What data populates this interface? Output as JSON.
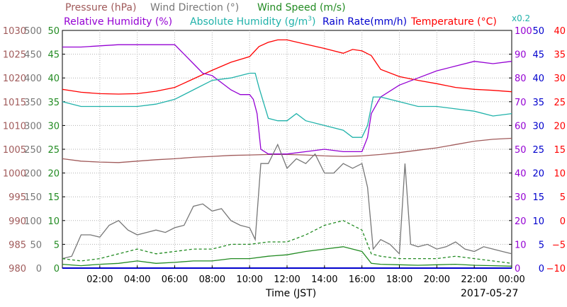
{
  "chart_data": {
    "type": "line",
    "date": "2017-05-27",
    "xlabel": "Time (JST)",
    "x_ticks": [
      "02:00",
      "04:00",
      "06:00",
      "08:00",
      "10:00",
      "12:00",
      "14:00",
      "16:00",
      "18:00",
      "20:00",
      "22:00",
      "00:00"
    ],
    "grid": true,
    "header": {
      "pressure": "Pressure (hPa)",
      "wind_direction": "Wind Direction (°)",
      "wind_speed": "Wind Speed (m/s)",
      "relative_humidity": "Relative Humidity (%)",
      "absolute_humidity_prefix": "Absolute Humidity (g/m",
      "absolute_humidity_sup": "3",
      "absolute_humidity_suffix": ")",
      "rain_rate": "Rain Rate(mm/h)",
      "temperature": "Temperature (°C)",
      "absolute_humidity_scale": "x0.2"
    },
    "axes": {
      "pressure": {
        "ylim": [
          980,
          1030
        ],
        "ticks": [
          "980",
          "985",
          "990",
          "995",
          "1000",
          "1005",
          "1010",
          "1015",
          "1020",
          "1025",
          "1030"
        ],
        "color": "#a05a5a"
      },
      "wind_direction": {
        "ylim": [
          0,
          500
        ],
        "ticks": [
          "0",
          "50",
          "100",
          "150",
          "200",
          "250",
          "300",
          "350",
          "400",
          "450",
          "500"
        ],
        "color": "#777777"
      },
      "wind_speed": {
        "ylim": [
          0,
          50
        ],
        "ticks": [
          "0",
          "5",
          "10",
          "15",
          "20",
          "25",
          "30",
          "35",
          "40",
          "45",
          "50"
        ],
        "color": "#228b22"
      },
      "relative_humidity": {
        "ylim": [
          0,
          100
        ],
        "ticks": [
          "0",
          "10",
          "20",
          "30",
          "40",
          "50",
          "60",
          "70",
          "80",
          "90",
          "100"
        ],
        "color": "#9400d3"
      },
      "rain_rate": {
        "ylim": [
          0,
          50
        ],
        "ticks": [
          "0",
          "5",
          "10",
          "15",
          "20",
          "25",
          "30",
          "35",
          "40",
          "45",
          "50"
        ],
        "color": "#0000cd"
      },
      "temperature": {
        "ylim": [
          -10,
          40
        ],
        "ticks": [
          "−10",
          "−5",
          "0",
          "5",
          "10",
          "15",
          "20",
          "25",
          "30",
          "35",
          "40"
        ],
        "color": "#ff0000"
      }
    },
    "series": [
      {
        "name": "Pressure (hPa)",
        "color": "#a05a5a",
        "axis": "pressure",
        "x": [
          0,
          1,
          2,
          3,
          4,
          5,
          6,
          7,
          8,
          9,
          10,
          11,
          12,
          13,
          14,
          15,
          16,
          17,
          18,
          19,
          20,
          21,
          22,
          23,
          24
        ],
        "y": [
          1003,
          1002.5,
          1002.3,
          1002.2,
          1002.5,
          1002.8,
          1003.0,
          1003.3,
          1003.5,
          1003.7,
          1003.8,
          1003.9,
          1003.9,
          1003.8,
          1003.6,
          1003.5,
          1003.6,
          1003.9,
          1004.3,
          1004.8,
          1005.3,
          1006.0,
          1006.7,
          1007.1,
          1007.3
        ]
      },
      {
        "name": "Temperature (°C)",
        "color": "#ff0000",
        "axis": "temperature",
        "x": [
          0,
          1,
          2,
          3,
          4,
          5,
          6,
          7,
          8,
          9,
          10,
          10.5,
          11,
          11.5,
          12,
          13,
          14,
          15,
          15.5,
          16,
          16.5,
          17,
          18,
          19,
          20,
          21,
          22,
          23,
          24
        ],
        "y": [
          27.6,
          27.0,
          26.7,
          26.6,
          26.7,
          27.2,
          28.0,
          29.8,
          31.6,
          33.3,
          34.5,
          36.6,
          37.5,
          38.0,
          38.0,
          37.1,
          36.2,
          35.2,
          36.0,
          35.7,
          34.7,
          31.8,
          30.3,
          29.5,
          28.8,
          28.0,
          27.6,
          27.4,
          27.1
        ]
      },
      {
        "name": "Relative Humidity (%)",
        "color": "#9400d3",
        "axis": "relative_humidity",
        "x": [
          0,
          1,
          2,
          3,
          4,
          5,
          6,
          6.5,
          7,
          7.5,
          8,
          8.5,
          9,
          9.5,
          10,
          10.2,
          10.4,
          10.6,
          11,
          12,
          13,
          14,
          15,
          16,
          16.3,
          16.5,
          17,
          18,
          19,
          20,
          21,
          22,
          23,
          24
        ],
        "y": [
          93,
          93,
          93.5,
          94,
          94,
          94,
          94,
          90,
          86,
          82,
          81,
          78,
          75,
          73,
          73,
          71,
          65,
          50,
          48,
          48,
          49,
          50,
          49,
          49,
          55,
          65,
          72,
          77,
          80,
          83,
          85,
          87,
          86,
          87
        ]
      },
      {
        "name": "Absolute Humidity (g/m3) x0.2",
        "color": "#20b2aa",
        "axis": "relative_humidity",
        "x": [
          0,
          1,
          2,
          3,
          4,
          5,
          6,
          7,
          8,
          9,
          10,
          10.3,
          10.5,
          11,
          11.5,
          12,
          12.5,
          13,
          14,
          15,
          15.5,
          16,
          16.3,
          16.6,
          17,
          18,
          19,
          20,
          21,
          22,
          23,
          24
        ],
        "y": [
          70,
          68,
          68,
          68,
          68,
          69,
          71,
          75,
          79,
          80,
          82,
          82,
          76,
          63,
          62,
          62,
          65,
          62,
          60,
          58,
          55,
          55,
          60,
          72,
          72,
          70,
          68,
          68,
          67,
          66,
          64,
          65
        ]
      },
      {
        "name": "Wind Direction (°)",
        "color": "#777777",
        "axis": "wind_direction",
        "x": [
          0,
          0.5,
          1,
          1.5,
          2,
          2.5,
          3,
          3.5,
          4,
          4.5,
          5,
          5.5,
          6,
          6.5,
          7,
          7.5,
          8,
          8.5,
          9,
          9.5,
          10,
          10.3,
          10.6,
          11,
          11.5,
          12,
          12.5,
          13,
          13.5,
          14,
          14.5,
          15,
          15.5,
          16,
          16.3,
          16.6,
          17,
          17.5,
          18,
          18.3,
          18.6,
          19,
          19.5,
          20,
          20.5,
          21,
          21.5,
          22,
          22.5,
          23,
          23.5,
          24
        ],
        "y": [
          20,
          25,
          70,
          70,
          65,
          90,
          100,
          80,
          70,
          75,
          80,
          75,
          85,
          90,
          130,
          135,
          120,
          125,
          100,
          90,
          85,
          60,
          220,
          220,
          260,
          210,
          230,
          220,
          240,
          200,
          200,
          220,
          210,
          220,
          170,
          40,
          60,
          50,
          30,
          220,
          50,
          45,
          50,
          40,
          45,
          55,
          40,
          35,
          45,
          40,
          35,
          30
        ]
      },
      {
        "name": "Wind Speed (m/s) max",
        "color": "#228b22",
        "dashed": true,
        "axis": "wind_speed",
        "x": [
          0,
          1,
          2,
          3,
          4,
          5,
          6,
          7,
          8,
          9,
          10,
          11,
          12,
          13,
          14,
          15,
          16,
          16.5,
          17,
          18,
          19,
          20,
          21,
          22,
          23,
          24
        ],
        "y": [
          2,
          1.5,
          2,
          3,
          4,
          3,
          3.5,
          4,
          4,
          5,
          5,
          5.5,
          5.5,
          7,
          9,
          10,
          8,
          3,
          2.5,
          2,
          2,
          2,
          2.5,
          2,
          1.5,
          1
        ]
      },
      {
        "name": "Wind Speed (m/s) mean",
        "color": "#228b22",
        "dashed": false,
        "axis": "wind_speed",
        "x": [
          0,
          1,
          2,
          3,
          4,
          5,
          6,
          7,
          8,
          9,
          10,
          11,
          12,
          13,
          14,
          15,
          16,
          16.5,
          17,
          18,
          19,
          20,
          21,
          22,
          23,
          24
        ],
        "y": [
          0.8,
          0.5,
          0.8,
          1,
          1.5,
          1,
          1.2,
          1.5,
          1.5,
          2,
          2,
          2.5,
          2.8,
          3.5,
          4,
          4.5,
          3.5,
          1,
          0.8,
          0.7,
          0.6,
          0.7,
          0.8,
          0.6,
          0.5,
          0.4
        ]
      },
      {
        "name": "Rain Rate(mm/h)",
        "color": "#0000cd",
        "axis": "rain_rate",
        "x": [
          0,
          24
        ],
        "y": [
          0,
          0
        ]
      }
    ]
  }
}
